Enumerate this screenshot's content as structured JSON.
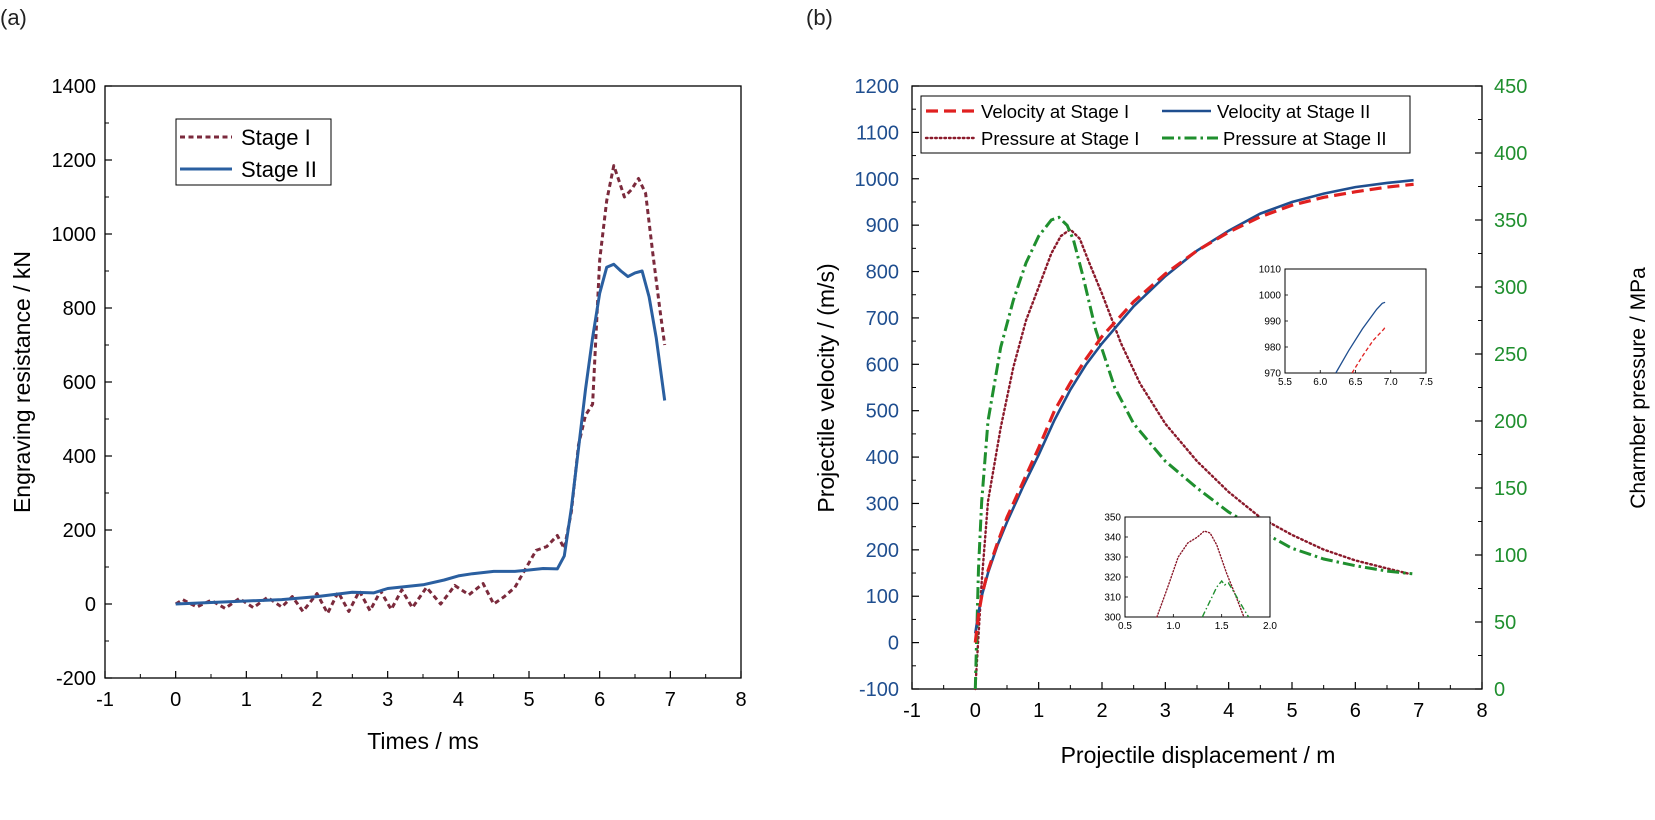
{
  "chart_data": [
    {
      "panel_label": "(a)",
      "type": "line",
      "xlabel": "Times / ms",
      "ylabel": "Engraving resistance / kN",
      "xlim": [
        -1,
        8
      ],
      "ylim": [
        -200,
        1400
      ],
      "xticks": [
        -1,
        0,
        1,
        2,
        3,
        4,
        5,
        6,
        7,
        8
      ],
      "yticks": [
        -200,
        0,
        200,
        400,
        600,
        800,
        1000,
        1200,
        1400
      ],
      "grid": false,
      "legend_position": "top-left",
      "series": [
        {
          "name": "Stage I",
          "color": "#7b2a3c",
          "style": "dashed",
          "x": [
            0,
            0.1,
            0.3,
            0.5,
            0.7,
            0.9,
            1.1,
            1.3,
            1.5,
            1.65,
            1.8,
            2.0,
            2.15,
            2.3,
            2.45,
            2.6,
            2.75,
            2.9,
            3.05,
            3.2,
            3.35,
            3.55,
            3.75,
            3.95,
            4.15,
            4.35,
            4.5,
            4.65,
            4.8,
            4.95,
            5.1,
            5.25,
            5.4,
            5.5,
            5.6,
            5.7,
            5.8,
            5.9,
            6.0,
            6.1,
            6.2,
            6.28,
            6.35,
            6.45,
            6.55,
            6.65,
            6.75,
            6.85,
            6.92
          ],
          "y": [
            0,
            12,
            -8,
            10,
            -12,
            15,
            -10,
            18,
            -8,
            20,
            -20,
            28,
            -25,
            32,
            -20,
            35,
            -18,
            35,
            -15,
            38,
            -10,
            45,
            0,
            50,
            25,
            55,
            0,
            20,
            45,
            95,
            145,
            155,
            185,
            150,
            250,
            430,
            510,
            540,
            930,
            1090,
            1185,
            1140,
            1100,
            1120,
            1150,
            1110,
            950,
            800,
            700
          ]
        },
        {
          "name": "Stage II",
          "color": "#2a5fa0",
          "style": "solid",
          "x": [
            0,
            0.5,
            1.0,
            1.5,
            2.0,
            2.5,
            2.8,
            3.0,
            3.2,
            3.5,
            3.8,
            4.0,
            4.2,
            4.5,
            4.8,
            5.0,
            5.2,
            5.4,
            5.5,
            5.6,
            5.7,
            5.8,
            5.9,
            6.0,
            6.1,
            6.2,
            6.3,
            6.4,
            6.5,
            6.6,
            6.7,
            6.8,
            6.92
          ],
          "y": [
            0,
            4,
            8,
            12,
            20,
            32,
            30,
            42,
            46,
            52,
            65,
            76,
            82,
            88,
            88,
            92,
            96,
            95,
            130,
            260,
            420,
            580,
            720,
            840,
            910,
            918,
            900,
            885,
            895,
            900,
            830,
            720,
            550
          ]
        }
      ]
    },
    {
      "panel_label": "(b)",
      "type": "line",
      "xlabel": "Projectile displacement / m",
      "ylabel": "Projectile velocity / (m/s)",
      "y2label": "Charmber pressure / MPa",
      "xlim": [
        -1,
        8
      ],
      "ylim": [
        -100,
        1200
      ],
      "y2lim": [
        0,
        450
      ],
      "xticks": [
        -1,
        0,
        1,
        2,
        3,
        4,
        5,
        6,
        7,
        8
      ],
      "yticks": [
        -100,
        0,
        100,
        200,
        300,
        400,
        500,
        600,
        700,
        800,
        900,
        1000,
        1100,
        1200
      ],
      "y2ticks": [
        0,
        50,
        100,
        150,
        200,
        250,
        300,
        350,
        400,
        450
      ],
      "grid": false,
      "legend_position": "top",
      "colors": {
        "left_axis": "#1f4e8f",
        "right_axis": "#1f8f2e"
      },
      "series": [
        {
          "name": "Velocity at Stage I",
          "axis": "left",
          "color": "#e02020",
          "style": "dashed",
          "x": [
            0,
            0.05,
            0.1,
            0.2,
            0.35,
            0.5,
            0.75,
            1.0,
            1.25,
            1.5,
            1.75,
            2.0,
            2.5,
            3.0,
            3.5,
            4.0,
            4.5,
            5.0,
            5.5,
            6.0,
            6.5,
            6.92
          ],
          "y": [
            0,
            60,
            100,
            155,
            215,
            270,
            345,
            420,
            500,
            560,
            612,
            660,
            735,
            795,
            845,
            885,
            918,
            943,
            960,
            972,
            982,
            988
          ]
        },
        {
          "name": "Velocity at Stage II",
          "axis": "left",
          "color": "#1f4e8f",
          "style": "solid",
          "x": [
            0,
            0.05,
            0.1,
            0.2,
            0.35,
            0.5,
            0.75,
            1.0,
            1.25,
            1.5,
            1.75,
            2.0,
            2.5,
            3.0,
            3.5,
            4.0,
            4.5,
            5.0,
            5.5,
            6.0,
            6.5,
            6.92
          ],
          "y": [
            20,
            65,
            100,
            150,
            210,
            260,
            335,
            405,
            480,
            545,
            600,
            645,
            725,
            790,
            845,
            888,
            925,
            950,
            968,
            982,
            991,
            997
          ]
        },
        {
          "name": "Pressure at Stage I",
          "axis": "right",
          "color": "#8b1a2b",
          "style": "dotted",
          "x": [
            0,
            0.1,
            0.2,
            0.4,
            0.6,
            0.8,
            1.0,
            1.2,
            1.35,
            1.5,
            1.65,
            1.8,
            2.0,
            2.3,
            2.6,
            3.0,
            3.5,
            4.0,
            4.5,
            5.0,
            5.5,
            6.0,
            6.5,
            6.85
          ],
          "y": [
            0,
            80,
            140,
            195,
            240,
            275,
            300,
            325,
            338,
            343,
            336,
            318,
            295,
            258,
            228,
            198,
            170,
            147,
            128,
            115,
            104,
            96,
            90,
            86
          ]
        },
        {
          "name": "Pressure at Stage II",
          "axis": "right",
          "color": "#1f8f2e",
          "style": "dashdot",
          "x": [
            0,
            0.05,
            0.1,
            0.2,
            0.4,
            0.6,
            0.8,
            1.0,
            1.2,
            1.32,
            1.45,
            1.55,
            1.7,
            1.9,
            2.2,
            2.5,
            3.0,
            3.5,
            4.0,
            4.5,
            5.0,
            5.5,
            6.0,
            6.5,
            6.9
          ],
          "y": [
            0,
            90,
            140,
            200,
            255,
            290,
            318,
            338,
            350,
            352,
            346,
            335,
            308,
            268,
            225,
            198,
            170,
            150,
            132,
            118,
            105,
            97,
            92,
            88,
            86
          ]
        }
      ],
      "insets": [
        {
          "xlim": [
            5.5,
            7.5
          ],
          "ylim": [
            970,
            1010
          ],
          "xticks": [
            5.5,
            6.0,
            6.5,
            7.0,
            7.5
          ],
          "yticks": [
            970,
            980,
            990,
            1000,
            1010
          ],
          "series": [
            {
              "name": "",
              "color": "#1f4e8f",
              "style": "solid",
              "x": [
                6.22,
                6.4,
                6.6,
                6.8,
                6.88,
                6.92
              ],
              "y": [
                970,
                978.5,
                987,
                994.5,
                996.8,
                997.2
              ]
            },
            {
              "name": "",
              "color": "#e02020",
              "style": "dashed",
              "x": [
                6.45,
                6.6,
                6.75,
                6.9,
                6.93
              ],
              "y": [
                970,
                976.5,
                982.5,
                986.8,
                988
              ]
            }
          ]
        },
        {
          "xlim": [
            0.5,
            2.0
          ],
          "ylim": [
            300,
            350
          ],
          "xticks": [
            0.5,
            1.0,
            1.5,
            2.0
          ],
          "yticks": [
            300,
            310,
            320,
            330,
            340,
            350
          ],
          "series": [
            {
              "name": "",
              "color": "#8b1a2b",
              "style": "dotted",
              "x": [
                0.83,
                0.95,
                1.05,
                1.15,
                1.25,
                1.32,
                1.38,
                1.45,
                1.55,
                1.65,
                1.73
              ],
              "y": [
                300,
                316,
                330,
                337,
                340,
                343,
                342,
                336,
                322,
                310,
                300
              ]
            },
            {
              "name": "",
              "color": "#1f8f2e",
              "style": "dashdot",
              "x": [
                1.3,
                1.4,
                1.45,
                1.5,
                1.53,
                1.57,
                1.62,
                1.68,
                1.74,
                1.78
              ],
              "y": [
                300,
                310,
                315,
                318,
                316,
                317,
                313,
                308,
                303,
                300
              ]
            }
          ]
        }
      ]
    }
  ]
}
